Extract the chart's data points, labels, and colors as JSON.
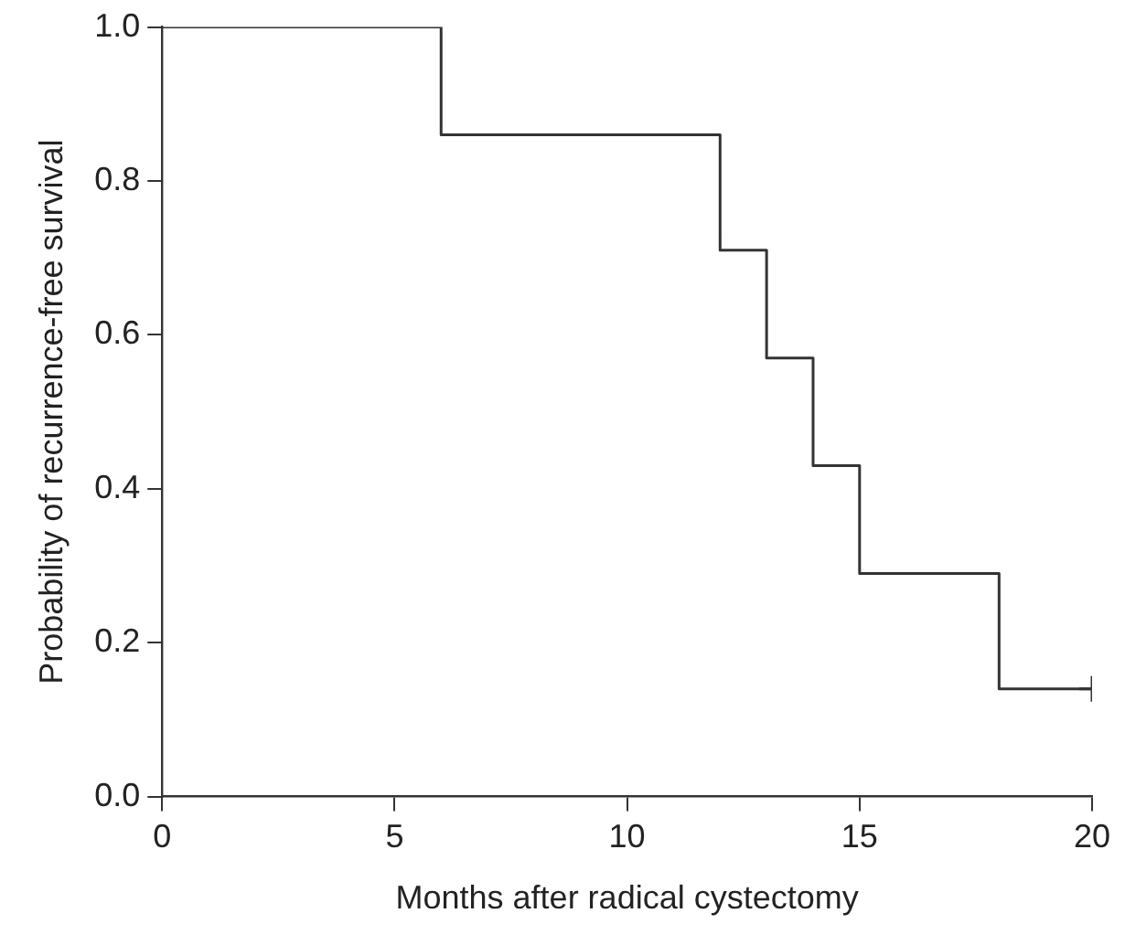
{
  "chart_data": {
    "type": "step",
    "xlabel": "Months after radical cystectomy",
    "ylabel": "Probability of recurrence-free survival",
    "series": [
      {
        "color": "#333333",
        "x": [
          0,
          6,
          12,
          13,
          14,
          15,
          18,
          20
        ],
        "values": [
          1,
          0.86,
          0.71,
          0.57,
          0.43,
          0.29,
          0.14,
          0.14
        ]
      },
      {
        "type": "scatter",
        "color": "#333333",
        "marker": "cross",
        "x": [
          20
        ],
        "values": [
          0.14
        ]
      }
    ],
    "xlim": [
      0,
      20
    ],
    "xticks": [
      0,
      5,
      10,
      15,
      20
    ],
    "ylim": [
      0,
      1
    ],
    "yticks": [
      {
        "value": 0,
        "label": "0.0"
      },
      {
        "value": 0.2,
        "label": "0.2"
      },
      {
        "value": 0.4,
        "label": "0.4"
      },
      {
        "value": 0.6,
        "label": "0.6"
      },
      {
        "value": 0.8,
        "label": "0.8"
      },
      {
        "value": 1,
        "label": "1.0"
      }
    ],
    "grid": false,
    "legend": false
  }
}
